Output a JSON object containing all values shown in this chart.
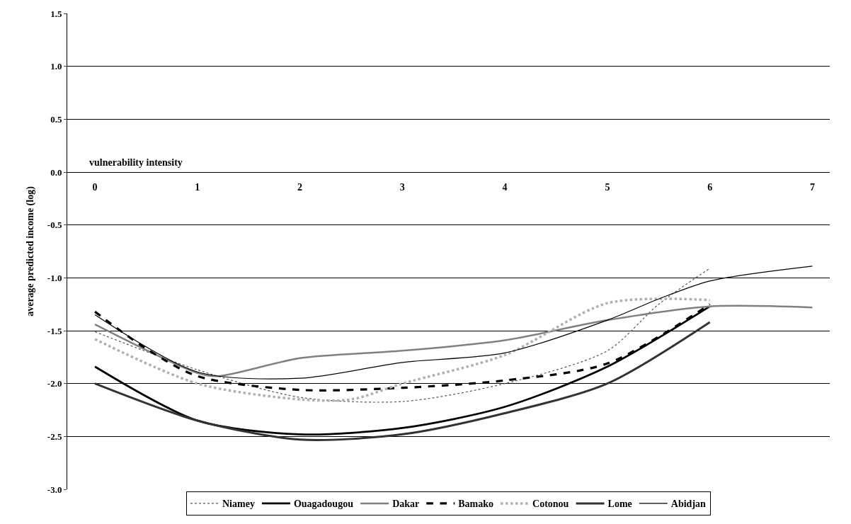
{
  "chart_data": {
    "type": "line",
    "xlabel": "vulnerability intensity",
    "ylabel": "average predicted income (log)",
    "xlim": [
      -0.27,
      7.17
    ],
    "xticks": [
      0,
      1,
      2,
      3,
      4,
      5,
      6,
      7
    ],
    "ylim": [
      -3.0,
      1.5
    ],
    "yticks": [
      {
        "value": -3.0,
        "label": "-3.0"
      },
      {
        "value": -2.5,
        "label": "-2.5"
      },
      {
        "value": -2.0,
        "label": "-2.0"
      },
      {
        "value": -1.5,
        "label": "-1.5"
      },
      {
        "value": -1.0,
        "label": "-1.0"
      },
      {
        "value": -0.5,
        "label": "-0.5"
      },
      {
        "value": 0.0,
        "label": "0.0"
      },
      {
        "value": 0.5,
        "label": "0.5"
      },
      {
        "value": 1.0,
        "label": "1.0"
      },
      {
        "value": 1.5,
        "label": "1.5"
      }
    ],
    "grid": "y",
    "legend": "bottom",
    "marker": "none",
    "series": [
      {
        "name": "Niamey",
        "color": "#555555",
        "line_style": "dotted",
        "x": [
          0,
          1,
          2,
          3,
          4,
          5,
          5.5,
          6
        ],
        "values": [
          -1.51,
          -1.87,
          -2.13,
          -2.17,
          -2.0,
          -1.69,
          -1.25,
          -0.91
        ]
      },
      {
        "name": "Ouagadougou",
        "color": "#000000",
        "line_style": "solid",
        "x": [
          0,
          1,
          2,
          3,
          4,
          5,
          6
        ],
        "values": [
          -1.84,
          -2.35,
          -2.48,
          -2.42,
          -2.22,
          -1.84,
          -1.27
        ]
      },
      {
        "name": "Dakar",
        "color": "#808080",
        "line_style": "solid",
        "x": [
          0,
          1,
          1.2,
          2,
          3,
          4,
          5,
          6,
          7
        ],
        "values": [
          -1.44,
          -1.9,
          -1.93,
          -1.76,
          -1.69,
          -1.59,
          -1.4,
          -1.27,
          -1.28
        ]
      },
      {
        "name": "Bamako",
        "color": "#000000",
        "line_style": "dashed",
        "x": [
          0,
          0.5,
          1,
          2,
          3,
          4,
          5,
          6
        ],
        "values": [
          -1.32,
          -1.67,
          -1.93,
          -2.06,
          -2.04,
          -1.97,
          -1.81,
          -1.25
        ]
      },
      {
        "name": "Cotonou",
        "color": "#b0b0b0",
        "line_style": "dotted",
        "x": [
          0,
          1,
          2,
          2.5,
          3,
          4,
          5,
          6
        ],
        "values": [
          -1.58,
          -2.0,
          -2.15,
          -2.15,
          -2.0,
          -1.73,
          -1.24,
          -1.21
        ]
      },
      {
        "name": "Lome",
        "color": "#333333",
        "line_style": "solid",
        "x": [
          0,
          1,
          2,
          3,
          4,
          5,
          6
        ],
        "values": [
          -2.0,
          -2.35,
          -2.53,
          -2.48,
          -2.28,
          -2.0,
          -1.42
        ]
      },
      {
        "name": "Abidjan",
        "color": "#000000",
        "line_style": "solid",
        "x": [
          0,
          1,
          2,
          3,
          4,
          5,
          5.5,
          6,
          7
        ],
        "values": [
          -1.35,
          -1.89,
          -1.95,
          -1.8,
          -1.71,
          -1.4,
          -1.2,
          -1.03,
          -0.89
        ]
      }
    ]
  }
}
